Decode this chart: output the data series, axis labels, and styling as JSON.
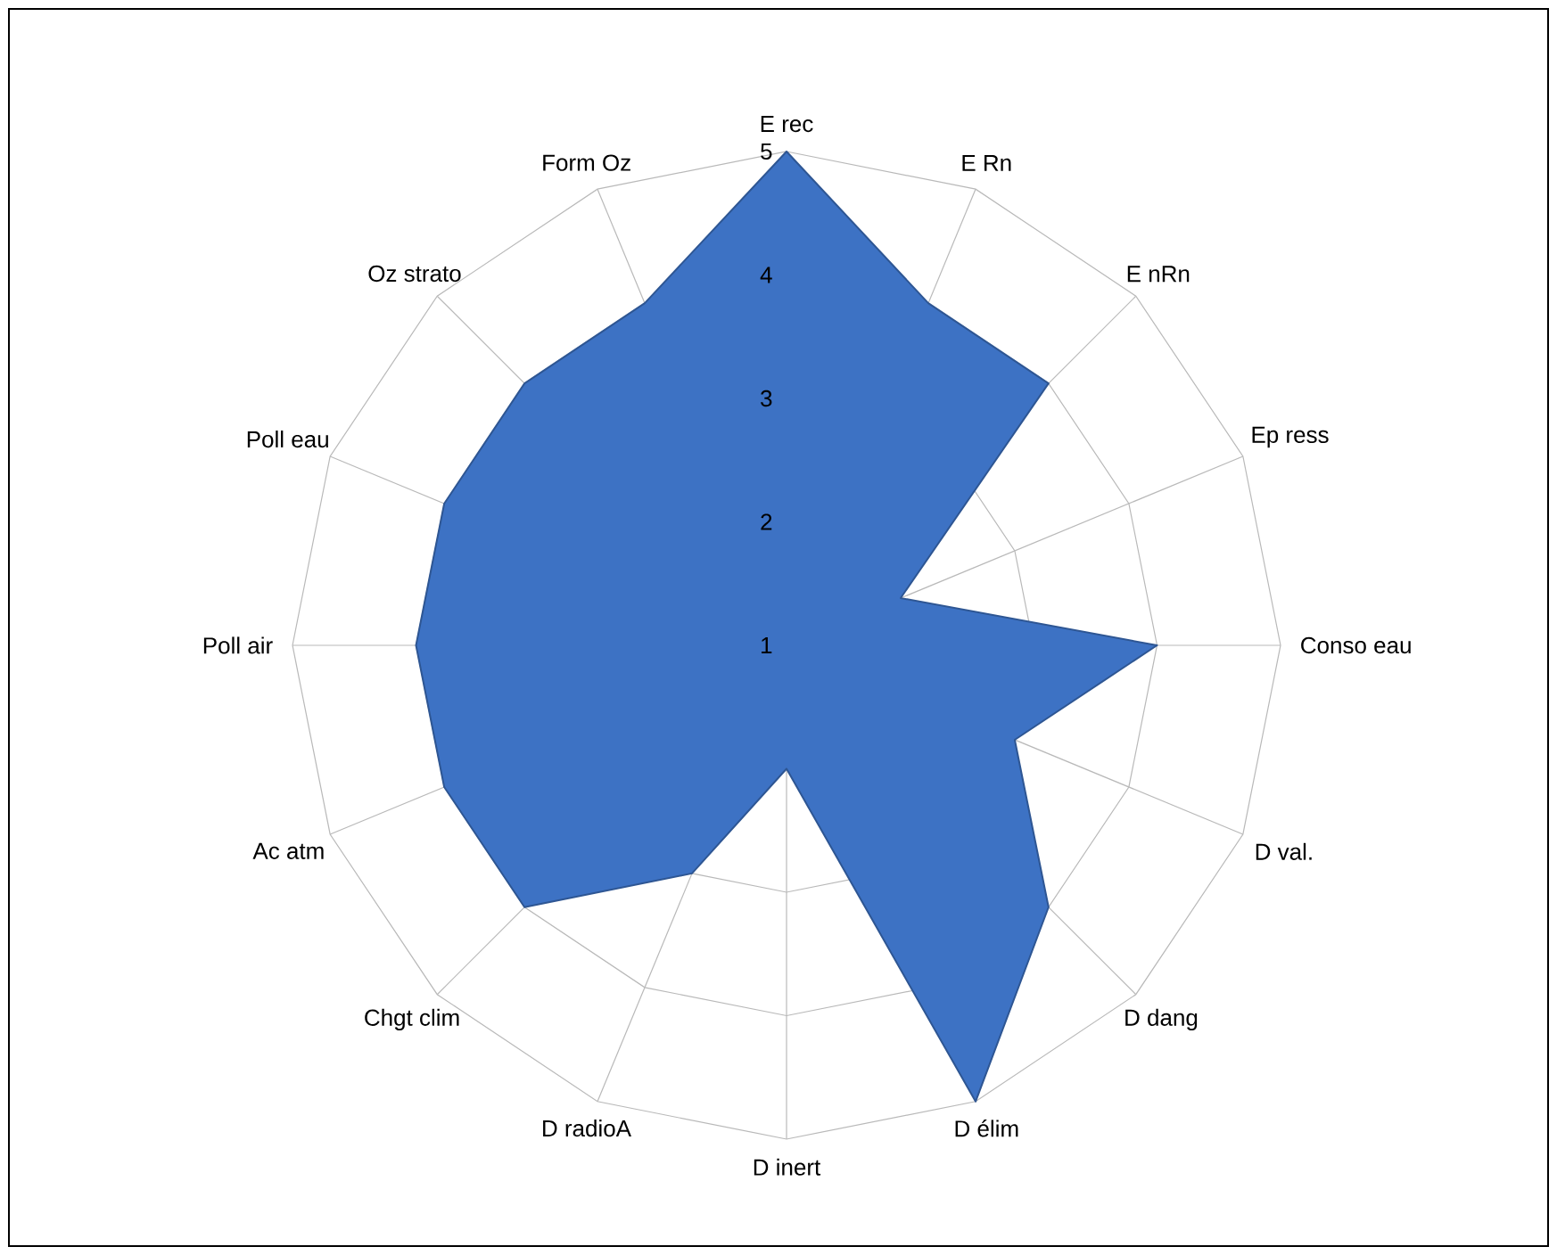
{
  "chart_data": {
    "type": "radar",
    "categories": [
      "E rec",
      "E Rn",
      "E nRn",
      "Ep ress",
      "Conso eau",
      "D val.",
      "D dang",
      "D élim",
      "D inert",
      "D radioA",
      "Chgt clim",
      "Ac atm",
      "Poll air",
      "Poll eau",
      "Oz strato",
      "Form Oz"
    ],
    "series": [
      {
        "color": "#3d72c4",
        "values": [
          5,
          4,
          4,
          2,
          4,
          3,
          4,
          5,
          2,
          3,
          4,
          4,
          4,
          4,
          4,
          4
        ]
      }
    ],
    "ylim": [
      1,
      5
    ],
    "yticks": [
      1,
      2,
      3,
      4,
      5
    ],
    "grid": true
  }
}
